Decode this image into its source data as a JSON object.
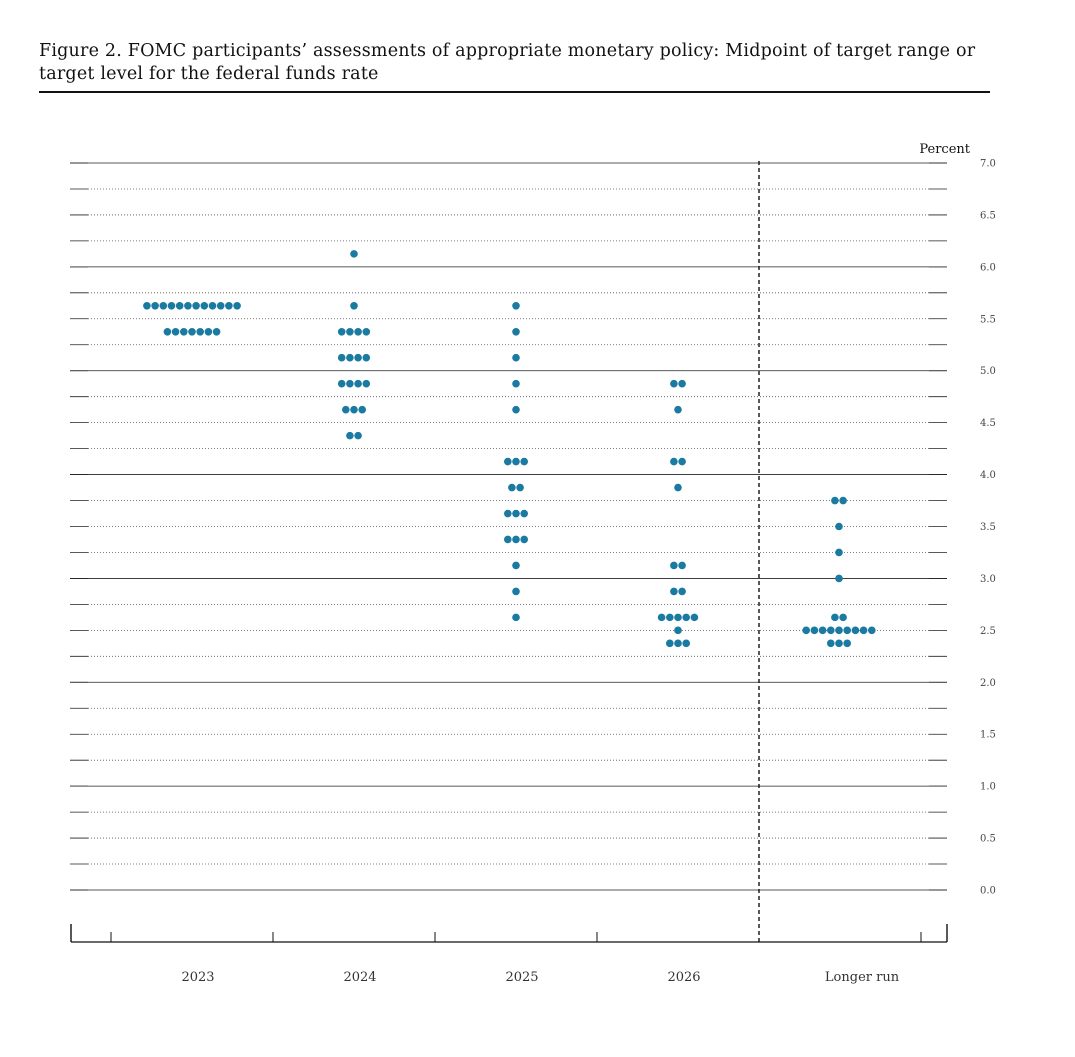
{
  "figure": {
    "title": "Figure 2.  FOMC participants’ assessments of appropriate monetary policy:  Midpoint of target range or target level for the federal funds rate"
  },
  "chart_data": {
    "type": "scatter",
    "title": "Figure 2.  FOMC participants’ assessments of appropriate monetary policy:  Midpoint of target range or target level for the federal funds rate",
    "ylabel": "Percent",
    "ylim": [
      0,
      7
    ],
    "y_ticks": [
      "7.0",
      "6.5",
      "6.0",
      "5.5",
      "5.0",
      "4.5",
      "4.0",
      "3.5",
      "3.0",
      "2.5",
      "2.0",
      "1.5",
      "1.0",
      "0.5",
      "0.0"
    ],
    "categories": [
      "2023",
      "2024",
      "2025",
      "2026",
      "Longer run"
    ],
    "grid": "dotted every 0.25, solid every 1.0",
    "dot_color": "#1a7aa1",
    "points": [
      {
        "category": "2023",
        "y": 5.625,
        "count": 12
      },
      {
        "category": "2023",
        "y": 5.375,
        "count": 7
      },
      {
        "category": "2024",
        "y": 6.125,
        "count": 1
      },
      {
        "category": "2024",
        "y": 5.625,
        "count": 1
      },
      {
        "category": "2024",
        "y": 5.375,
        "count": 4
      },
      {
        "category": "2024",
        "y": 5.125,
        "count": 4
      },
      {
        "category": "2024",
        "y": 4.875,
        "count": 4
      },
      {
        "category": "2024",
        "y": 4.625,
        "count": 3
      },
      {
        "category": "2024",
        "y": 4.375,
        "count": 2
      },
      {
        "category": "2025",
        "y": 5.625,
        "count": 1
      },
      {
        "category": "2025",
        "y": 5.375,
        "count": 1
      },
      {
        "category": "2025",
        "y": 5.125,
        "count": 1
      },
      {
        "category": "2025",
        "y": 4.875,
        "count": 1
      },
      {
        "category": "2025",
        "y": 4.625,
        "count": 1
      },
      {
        "category": "2025",
        "y": 4.125,
        "count": 3
      },
      {
        "category": "2025",
        "y": 3.875,
        "count": 2
      },
      {
        "category": "2025",
        "y": 3.625,
        "count": 3
      },
      {
        "category": "2025",
        "y": 3.375,
        "count": 3
      },
      {
        "category": "2025",
        "y": 3.125,
        "count": 1
      },
      {
        "category": "2025",
        "y": 2.875,
        "count": 1
      },
      {
        "category": "2025",
        "y": 2.625,
        "count": 1
      },
      {
        "category": "2026",
        "y": 4.875,
        "count": 2
      },
      {
        "category": "2026",
        "y": 4.625,
        "count": 1
      },
      {
        "category": "2026",
        "y": 4.125,
        "count": 2
      },
      {
        "category": "2026",
        "y": 3.875,
        "count": 1
      },
      {
        "category": "2026",
        "y": 3.125,
        "count": 2
      },
      {
        "category": "2026",
        "y": 2.875,
        "count": 2
      },
      {
        "category": "2026",
        "y": 2.625,
        "count": 5
      },
      {
        "category": "2026",
        "y": 2.5,
        "count": 1
      },
      {
        "category": "2026",
        "y": 2.375,
        "count": 3
      },
      {
        "category": "Longer run",
        "y": 3.75,
        "count": 2
      },
      {
        "category": "Longer run",
        "y": 3.5,
        "count": 1
      },
      {
        "category": "Longer run",
        "y": 3.25,
        "count": 1
      },
      {
        "category": "Longer run",
        "y": 3.0,
        "count": 1
      },
      {
        "category": "Longer run",
        "y": 2.625,
        "count": 2
      },
      {
        "category": "Longer run",
        "y": 2.5,
        "count": 9
      },
      {
        "category": "Longer run",
        "y": 2.375,
        "count": 3
      }
    ]
  }
}
